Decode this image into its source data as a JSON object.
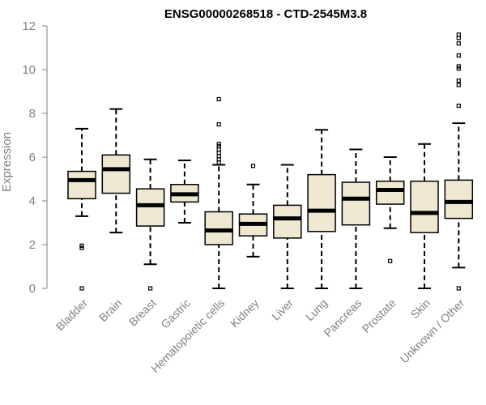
{
  "chart_data": {
    "type": "boxplot",
    "title": "ENSG00000268518 - CTD-2545M3.8",
    "ylabel": "Expression",
    "xlabel": "",
    "ylim": [
      0,
      12
    ],
    "yticks": [
      0,
      2,
      4,
      6,
      8,
      10,
      12
    ],
    "categories": [
      "Bladder",
      "Brain",
      "Breast",
      "Gastric",
      "Hematopoietic cells",
      "Kidney",
      "Liver",
      "Lung",
      "Pancreas",
      "Prostate",
      "Skin",
      "Unknown / Other"
    ],
    "boxes": [
      {
        "whisker_low": 3.3,
        "q1": 4.1,
        "median": 4.95,
        "q3": 5.35,
        "whisker_high": 7.3,
        "outliers": [
          1.85,
          1.95,
          0.0
        ]
      },
      {
        "whisker_low": 2.55,
        "q1": 4.35,
        "median": 5.45,
        "q3": 6.1,
        "whisker_high": 8.2,
        "outliers": []
      },
      {
        "whisker_low": 1.1,
        "q1": 2.85,
        "median": 3.8,
        "q3": 4.55,
        "whisker_high": 5.9,
        "outliers": [
          0.0
        ]
      },
      {
        "whisker_low": 3.0,
        "q1": 3.95,
        "median": 4.3,
        "q3": 4.75,
        "whisker_high": 5.85,
        "outliers": []
      },
      {
        "whisker_low": 0.0,
        "q1": 2.0,
        "median": 2.65,
        "q3": 3.5,
        "whisker_high": 5.65,
        "outliers": [
          5.75,
          5.9,
          6.05,
          6.2,
          6.35,
          6.5,
          6.6,
          7.5,
          8.65
        ]
      },
      {
        "whisker_low": 1.45,
        "q1": 2.4,
        "median": 2.95,
        "q3": 3.4,
        "whisker_high": 4.75,
        "outliers": [
          5.6
        ]
      },
      {
        "whisker_low": 0.0,
        "q1": 2.3,
        "median": 3.2,
        "q3": 3.8,
        "whisker_high": 5.65,
        "outliers": []
      },
      {
        "whisker_low": 0.0,
        "q1": 2.6,
        "median": 3.55,
        "q3": 5.2,
        "whisker_high": 7.25,
        "outliers": []
      },
      {
        "whisker_low": 0.0,
        "q1": 2.9,
        "median": 4.1,
        "q3": 4.85,
        "whisker_high": 6.35,
        "outliers": []
      },
      {
        "whisker_low": 2.75,
        "q1": 3.85,
        "median": 4.5,
        "q3": 4.9,
        "whisker_high": 6.0,
        "outliers": [
          1.25
        ]
      },
      {
        "whisker_low": 0.0,
        "q1": 2.55,
        "median": 3.45,
        "q3": 4.9,
        "whisker_high": 6.6,
        "outliers": []
      },
      {
        "whisker_low": 0.95,
        "q1": 3.2,
        "median": 3.95,
        "q3": 4.95,
        "whisker_high": 7.55,
        "outliers": [
          0.0,
          8.35,
          9.3,
          9.5,
          10.05,
          10.15,
          10.65,
          11.2,
          11.45,
          11.6
        ]
      }
    ],
    "colors": {
      "box_fill": "#efe8d0",
      "box_stroke": "#000000",
      "axis": "#808080",
      "tick_text": "#808080"
    },
    "grid": false,
    "legend": "none"
  }
}
